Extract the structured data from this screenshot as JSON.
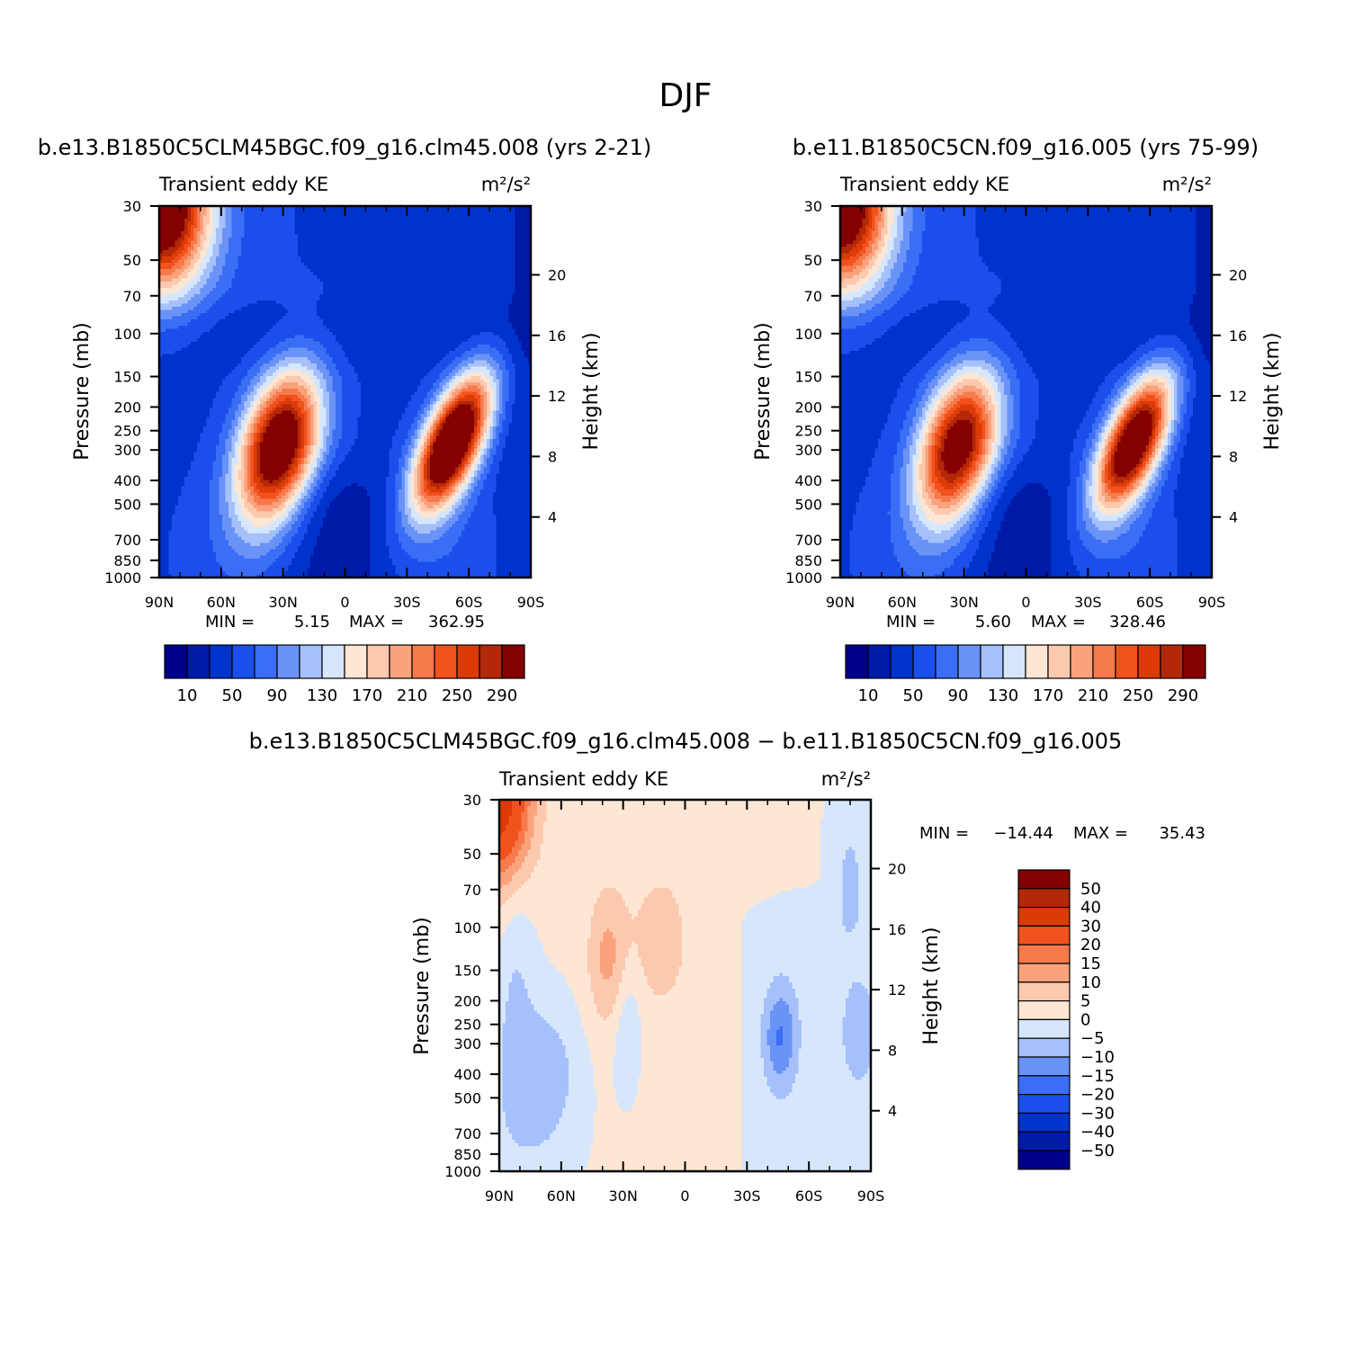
{
  "title": "DJF",
  "panels": [
    {
      "case": "b.e13.B1850C5CLM45BGC.f09_g16.clm45.008 (yrs 2-21)",
      "field": "Transient eddy KE",
      "units": "m²/s²",
      "min_label": "MIN =",
      "min_value": "5.15",
      "max_label": "MAX =",
      "max_value": "362.95"
    },
    {
      "case": "b.e11.B1850C5CN.f09_g16.005 (yrs 75-99)",
      "field": "Transient eddy KE",
      "units": "m²/s²",
      "min_label": "MIN =",
      "min_value": "5.60",
      "max_label": "MAX =",
      "max_value": "328.46"
    },
    {
      "case": "b.e13.B1850C5CLM45BGC.f09_g16.clm45.008 − b.e11.B1850C5CN.f09_g16.005",
      "field": "Transient eddy KE",
      "units": "m²/s²",
      "min_label": "MIN =",
      "min_value": "−14.44",
      "max_label": "MAX =",
      "max_value": "35.43"
    }
  ],
  "axes": {
    "ylabel_left": "Pressure (mb)",
    "ylabel_right": "Height (km)"
  },
  "chart_data": [
    {
      "type": "heatmap",
      "name": "Transient eddy KE",
      "x_ticks": [
        "90N",
        "60N",
        "30N",
        "0",
        "30S",
        "60S",
        "90S"
      ],
      "x_values": [
        90,
        60,
        30,
        0,
        -30,
        -60,
        -90
      ],
      "y_ticks": [
        "30",
        "50",
        "70",
        "100",
        "150",
        "200",
        "250",
        "300",
        "400",
        "500",
        "700",
        "850",
        "1000"
      ],
      "y_values": [
        30,
        50,
        70,
        100,
        150,
        200,
        250,
        300,
        400,
        500,
        700,
        850,
        1000
      ],
      "y_scale": "log",
      "ylim": [
        1000,
        30
      ],
      "right_ticks": [
        "20",
        "16",
        "12",
        "8",
        "4"
      ],
      "right_values": [
        20,
        16,
        12,
        8,
        4
      ],
      "levels": [
        10,
        30,
        50,
        70,
        90,
        110,
        130,
        150,
        170,
        190,
        210,
        230,
        250,
        270,
        290
      ],
      "colorbar_labels": [
        "10",
        "50",
        "90",
        "130",
        "170",
        "210",
        "250",
        "290"
      ],
      "colors": [
        "#00008a",
        "#001aa8",
        "#0033cc",
        "#1a4fec",
        "#3a6ef5",
        "#6a93f7",
        "#a5c0fa",
        "#d6e7fc",
        "#fde6d4",
        "#fcc9ae",
        "#f9a27c",
        "#f67a4c",
        "#f1521e",
        "#dc3b07",
        "#b22808",
        "#850000"
      ],
      "features": [
        {
          "lat": 30,
          "p": 290,
          "value": 330
        },
        {
          "lat": -52,
          "p": 280,
          "value": 363
        },
        {
          "lat": 90,
          "p": 30,
          "value": 320
        }
      ]
    },
    {
      "type": "heatmap",
      "name": "Transient eddy KE",
      "x_ticks": [
        "90N",
        "60N",
        "30N",
        "0",
        "30S",
        "60S",
        "90S"
      ],
      "x_values": [
        90,
        60,
        30,
        0,
        -30,
        -60,
        -90
      ],
      "y_ticks": [
        "30",
        "50",
        "70",
        "100",
        "150",
        "200",
        "250",
        "300",
        "400",
        "500",
        "700",
        "850",
        "1000"
      ],
      "y_values": [
        30,
        50,
        70,
        100,
        150,
        200,
        250,
        300,
        400,
        500,
        700,
        850,
        1000
      ],
      "y_scale": "log",
      "ylim": [
        1000,
        30
      ],
      "right_ticks": [
        "20",
        "16",
        "12",
        "8",
        "4"
      ],
      "right_values": [
        20,
        16,
        12,
        8,
        4
      ],
      "levels": [
        10,
        30,
        50,
        70,
        90,
        110,
        130,
        150,
        170,
        190,
        210,
        230,
        250,
        270,
        290
      ],
      "colorbar_labels": [
        "10",
        "50",
        "90",
        "130",
        "170",
        "210",
        "250",
        "290"
      ],
      "colors": [
        "#00008a",
        "#001aa8",
        "#0033cc",
        "#1a4fec",
        "#3a6ef5",
        "#6a93f7",
        "#a5c0fa",
        "#d6e7fc",
        "#fde6d4",
        "#fcc9ae",
        "#f9a27c",
        "#f67a4c",
        "#f1521e",
        "#dc3b07",
        "#b22808",
        "#850000"
      ],
      "features": [
        {
          "lat": 32,
          "p": 290,
          "value": 300
        },
        {
          "lat": -50,
          "p": 280,
          "value": 328
        },
        {
          "lat": 90,
          "p": 30,
          "value": 300
        }
      ]
    },
    {
      "type": "heatmap",
      "name": "Transient eddy KE difference",
      "x_ticks": [
        "90N",
        "60N",
        "30N",
        "0",
        "30S",
        "60S",
        "90S"
      ],
      "x_values": [
        90,
        60,
        30,
        0,
        -30,
        -60,
        -90
      ],
      "y_ticks": [
        "30",
        "50",
        "70",
        "100",
        "150",
        "200",
        "250",
        "300",
        "400",
        "500",
        "700",
        "850",
        "1000"
      ],
      "y_values": [
        30,
        50,
        70,
        100,
        150,
        200,
        250,
        300,
        400,
        500,
        700,
        850,
        1000
      ],
      "y_scale": "log",
      "ylim": [
        1000,
        30
      ],
      "right_ticks": [
        "20",
        "16",
        "12",
        "8",
        "4"
      ],
      "right_values": [
        20,
        16,
        12,
        8,
        4
      ],
      "levels": [
        -50,
        -40,
        -30,
        -20,
        -15,
        -10,
        -5,
        0,
        5,
        10,
        15,
        20,
        30,
        40,
        50
      ],
      "colorbar_labels": [
        "50",
        "40",
        "30",
        "20",
        "15",
        "10",
        "5",
        "0",
        "−5",
        "−10",
        "−15",
        "−20",
        "−30",
        "−40",
        "−50"
      ],
      "colors": [
        "#00008a",
        "#001aa8",
        "#0033cc",
        "#1a4fec",
        "#3a6ef5",
        "#6a93f7",
        "#a5c0fa",
        "#d6e7fc",
        "#fde6d4",
        "#fcc9ae",
        "#f9a27c",
        "#f67a4c",
        "#f1521e",
        "#dc3b07",
        "#b22808",
        "#850000"
      ],
      "features": [
        {
          "lat": 88,
          "p": 32,
          "value": 35
        },
        {
          "lat": 37,
          "p": 140,
          "value": 10
        },
        {
          "lat": -46,
          "p": 280,
          "value": -14
        }
      ]
    }
  ]
}
